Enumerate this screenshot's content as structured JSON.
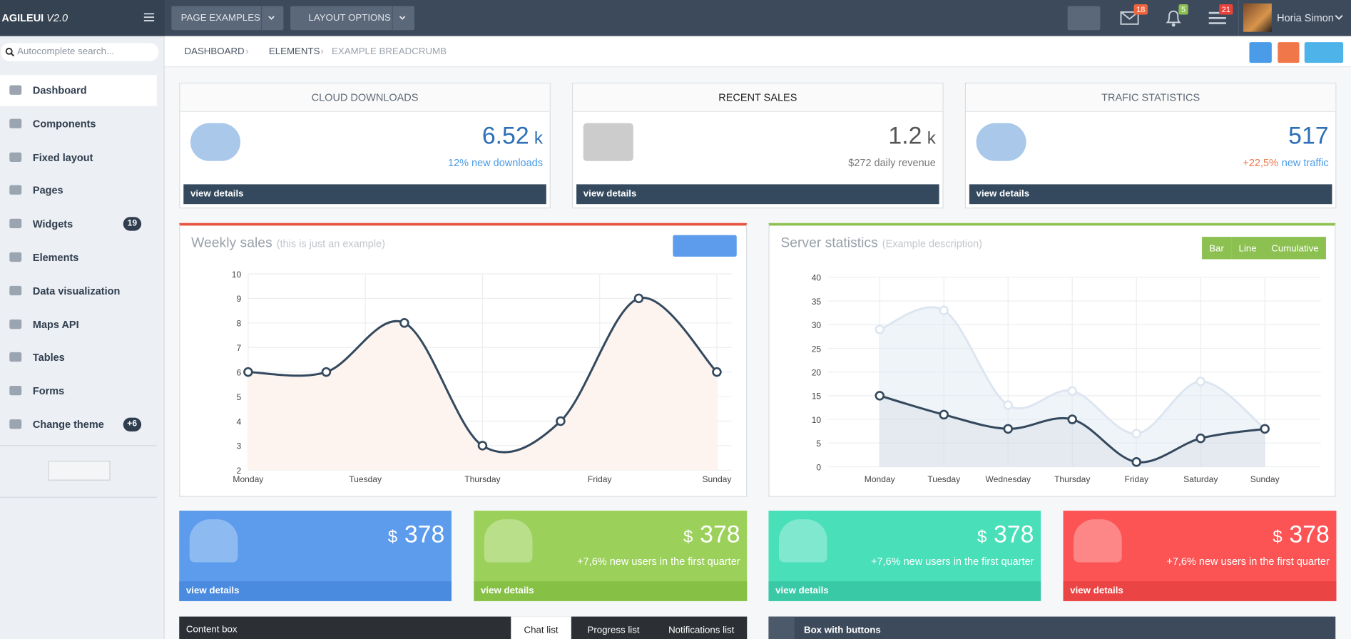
{
  "topbar": {
    "logo": "AGILEUI",
    "version": "V2.0",
    "buttons": [
      "PAGE EXAMPLES",
      "LAYOUT OPTIONS"
    ],
    "badges": [
      18,
      5,
      21
    ],
    "user": "Horia Simon"
  },
  "search_placeholder": "Autocomplete search...",
  "menu": [
    {
      "label": "Dashboard"
    },
    {
      "label": "Components"
    },
    {
      "label": "Fixed layout"
    },
    {
      "label": "Pages"
    },
    {
      "label": "Widgets",
      "badge": 19
    },
    {
      "label": "Elements"
    },
    {
      "label": "Data visualization"
    },
    {
      "label": "Maps API"
    },
    {
      "label": "Tables"
    },
    {
      "label": "Forms"
    },
    {
      "label": "Change theme",
      "badge": "+6"
    }
  ],
  "breadcrumb": [
    "DASHBOARD",
    "ELEMENTS",
    "EXAMPLE BREADCRUMB"
  ],
  "stat_boxes": [
    {
      "title": "CLOUD DOWNLOADS",
      "value": 6.52,
      "unit": "k",
      "note": "12% new downloads",
      "link": "view details"
    },
    {
      "title": "RECENT SALES",
      "value": 1.2,
      "unit": "k",
      "note": "$272 daily revenue",
      "link": "view details"
    },
    {
      "title": "TRAFIC STATISTICS",
      "value": 517,
      "note_accent": "+22,5%",
      "note": "new traffic",
      "link": "view details"
    }
  ],
  "weekly_sales": {
    "type": "line",
    "title": "Weekly sales",
    "subtitle": "(this is just an example)",
    "x": [
      0,
      1,
      2,
      3,
      4,
      5,
      6
    ],
    "values": [
      6,
      6,
      8,
      3,
      4,
      9,
      6
    ],
    "color": "#34495e",
    "xlim": [
      0,
      6
    ],
    "xticks": [
      {
        "value": 0,
        "label": "Monday"
      },
      {
        "value": 1.5,
        "label": "Tuesday"
      },
      {
        "value": 3,
        "label": "Thursday"
      },
      {
        "value": 4.5,
        "label": "Friday"
      },
      {
        "value": 6,
        "label": "Sunday"
      }
    ],
    "ylim": [
      2,
      10
    ],
    "yticks": [
      2,
      3,
      4,
      5,
      6,
      7,
      8,
      9,
      10
    ],
    "grid": true
  },
  "server_statistics": {
    "type": "line",
    "title": "Server statistics",
    "subtitle": "(Example description)",
    "buttons": [
      "Bar",
      "Line",
      "Cumulative"
    ],
    "categories": [
      "Monday",
      "Tuesday",
      "Wednesday",
      "Thursday",
      "Friday",
      "Saturday",
      "Sunday"
    ],
    "series": [
      {
        "color": "#dde6f0",
        "values": [
          29,
          33,
          13,
          16,
          7,
          18,
          8
        ]
      },
      {
        "color": "#34495e",
        "values": [
          15,
          11,
          8,
          10,
          1,
          6,
          8
        ]
      }
    ],
    "ylim": [
      0,
      40
    ],
    "yticks": [
      0,
      5,
      10,
      15,
      20,
      25,
      30,
      35,
      40
    ],
    "grid": true
  },
  "tiles": [
    {
      "currency": "$",
      "value": 378,
      "link": "view details"
    },
    {
      "currency": "$",
      "value": 378,
      "note": "+7,6% new users in the first quarter",
      "link": "view details"
    },
    {
      "currency": "$",
      "value": 378,
      "note": "+7,6% new users in the first quarter",
      "link": "view details"
    },
    {
      "currency": "$",
      "value": 378,
      "note": "+7,6% new users in the first quarter",
      "link": "view details"
    }
  ],
  "content_box": {
    "title": "Content box",
    "tabs": [
      "Chat list",
      "Progress list",
      "Notifications list"
    ]
  },
  "button_box": {
    "title": "Box with buttons"
  }
}
